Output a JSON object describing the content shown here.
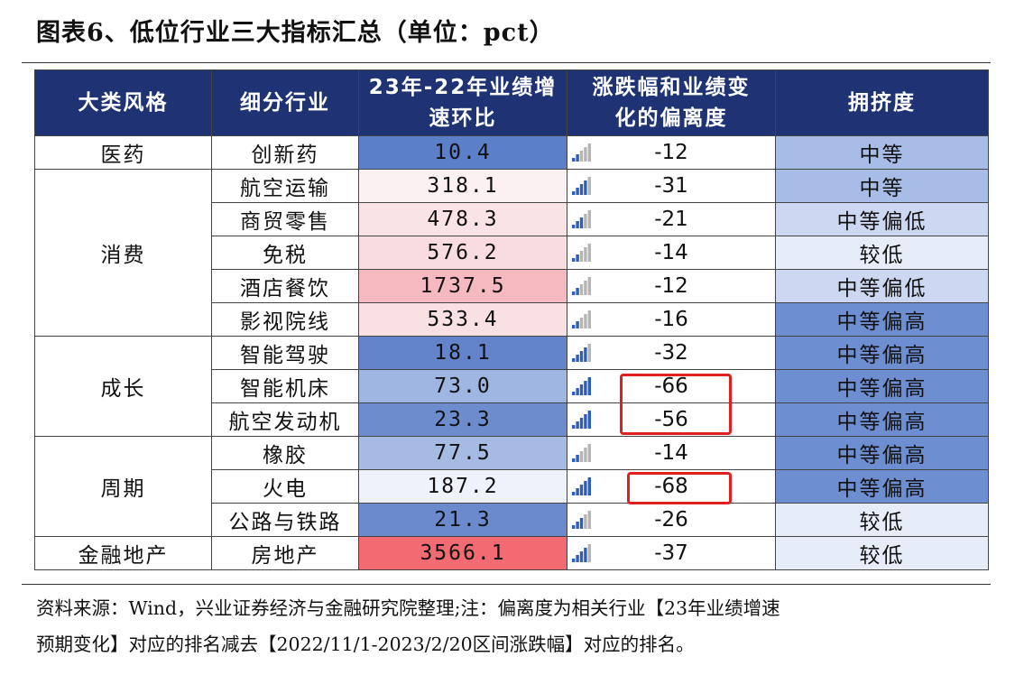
{
  "title": "图表6、低位行业三大指标汇总（单位：pct）",
  "header": {
    "category": "大类风格",
    "industry": "细分行业",
    "growth_line1": "23年-22年业绩增",
    "growth_line2": "速环比",
    "deviation_line1": "涨跌幅和业绩变",
    "deviation_line2": "化的偏离度",
    "crowding": "拥挤度"
  },
  "groups": [
    {
      "name": "医药",
      "rows": 1
    },
    {
      "name": "消费",
      "rows": 5
    },
    {
      "name": "成长",
      "rows": 3
    },
    {
      "name": "周期",
      "rows": 3
    },
    {
      "name": "金融地产",
      "rows": 1
    }
  ],
  "rows": [
    {
      "industry": "创新药",
      "growth": "10.4",
      "deviation": "-12",
      "crowding": "中等",
      "growth_color": "#5b7fc9",
      "crowd_color": "#a7bce6",
      "bars": 2
    },
    {
      "industry": "航空运输",
      "growth": "318.1",
      "deviation": "-31",
      "crowding": "中等",
      "growth_color": "#fbf1f2",
      "crowd_color": "#a7bce6",
      "bars": 4
    },
    {
      "industry": "商贸零售",
      "growth": "478.3",
      "deviation": "-21",
      "crowding": "中等偏低",
      "growth_color": "#f9e3e5",
      "crowd_color": "#ccd8f1",
      "bars": 3
    },
    {
      "industry": "免税",
      "growth": "576.2",
      "deviation": "-14",
      "crowding": "较低",
      "growth_color": "#f8dcdf",
      "crowd_color": "#e6ecf8",
      "bars": 2
    },
    {
      "industry": "酒店餐饮",
      "growth": "1737.5",
      "deviation": "-12",
      "crowding": "中等偏低",
      "growth_color": "#f5b9bf",
      "crowd_color": "#ccd8f1",
      "bars": 2
    },
    {
      "industry": "影视院线",
      "growth": "533.4",
      "deviation": "-16",
      "crowding": "中等偏高",
      "growth_color": "#f9e0e3",
      "crowd_color": "#6d8ed0",
      "bars": 2
    },
    {
      "industry": "智能驾驶",
      "growth": "18.1",
      "deviation": "-32",
      "crowding": "中等偏高",
      "growth_color": "#6384ca",
      "crowd_color": "#6d8ed0",
      "bars": 4
    },
    {
      "industry": "智能机床",
      "growth": "73.0",
      "deviation": "-66",
      "crowding": "中等偏高",
      "growth_color": "#9fb6e2",
      "crowd_color": "#6d8ed0",
      "bars": 5
    },
    {
      "industry": "航空发动机",
      "growth": "23.3",
      "deviation": "-56",
      "crowding": "中等偏高",
      "growth_color": "#6c8cce",
      "crowd_color": "#6d8ed0",
      "bars": 5
    },
    {
      "industry": "橡胶",
      "growth": "77.5",
      "deviation": "-14",
      "crowding": "中等偏高",
      "growth_color": "#a5bbe4",
      "crowd_color": "#6d8ed0",
      "bars": 2
    },
    {
      "industry": "火电",
      "growth": "187.2",
      "deviation": "-68",
      "crowding": "中等偏高",
      "growth_color": "#eef2fa",
      "crowd_color": "#6d8ed0",
      "bars": 5
    },
    {
      "industry": "公路与铁路",
      "growth": "21.3",
      "deviation": "-26",
      "crowding": "较低",
      "growth_color": "#6a8acd",
      "crowd_color": "#e6ecf8",
      "bars": 3
    },
    {
      "industry": "房地产",
      "growth": "3566.1",
      "deviation": "-37",
      "crowding": "较低",
      "growth_color": "#f26b72",
      "crowd_color": "#e6ecf8",
      "bars": 4
    }
  ],
  "note_line1": "资料来源：Wind，兴业证券经济与金融研究院整理;注：偏离度为相关行业【23年业绩增速",
  "note_line2": "预期变化】对应的排名减去【2022/11/1-2023/2/20区间涨跌幅】对应的排名。",
  "colors": {
    "header_bg": "#1f3374",
    "highlight_border": "#e02020",
    "icon_blue": "#2e5fb8",
    "icon_grey": "#b5b5b5"
  }
}
